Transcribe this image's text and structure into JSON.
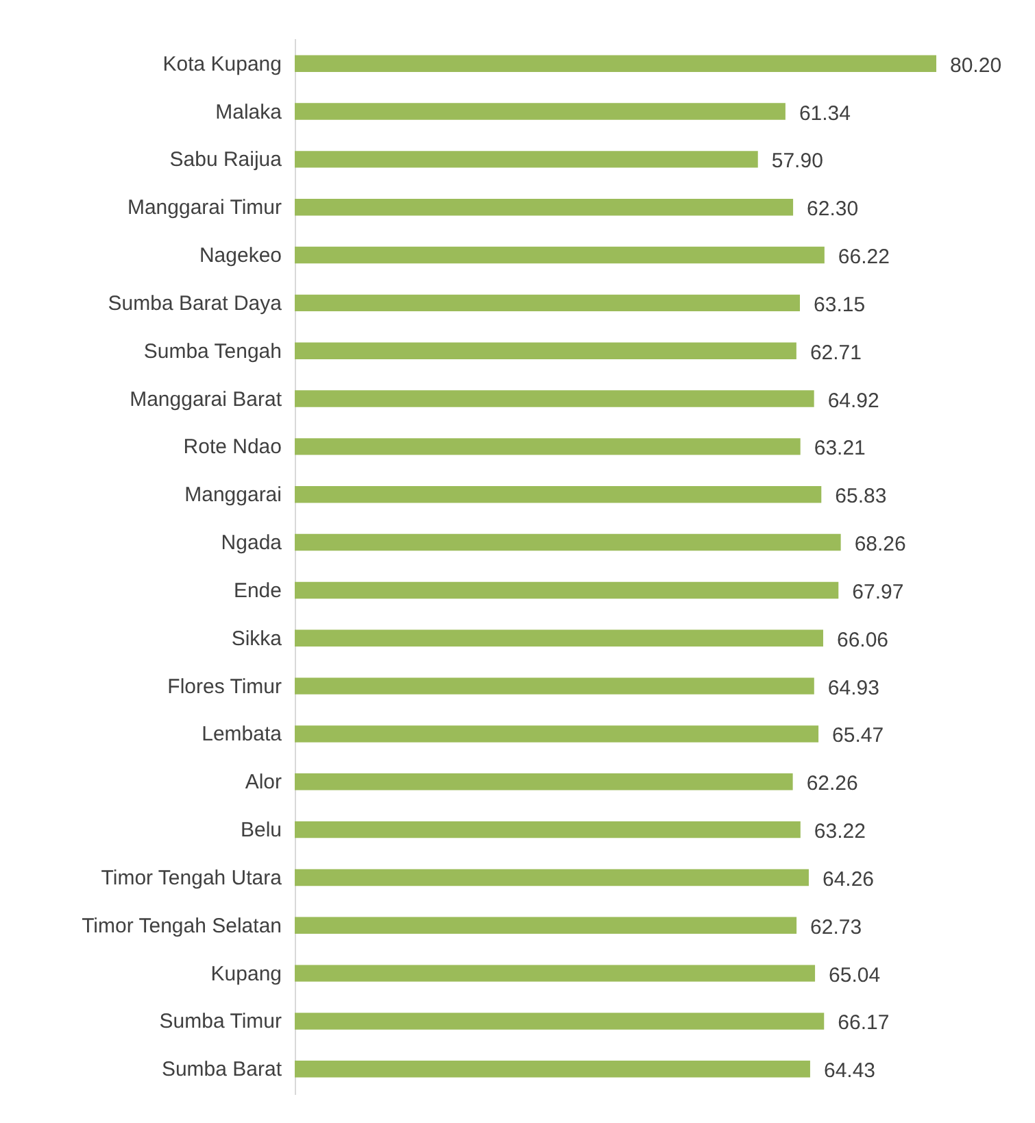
{
  "chart_data": {
    "type": "bar",
    "orientation": "horizontal",
    "categories": [
      "Kota Kupang",
      "Malaka",
      "Sabu Raijua",
      "Manggarai Timur",
      "Nagekeo",
      "Sumba Barat Daya",
      "Sumba Tengah",
      "Manggarai Barat",
      "Rote Ndao",
      "Manggarai",
      "Ngada",
      "Ende",
      "Sikka",
      "Flores Timur",
      "Lembata",
      "Alor",
      "Belu",
      "Timor Tengah Utara",
      "Timor Tengah Selatan",
      "Kupang",
      "Sumba Timur",
      "Sumba Barat"
    ],
    "series": [
      {
        "color": "#9bbb59",
        "values": [
          80.2,
          61.34,
          57.9,
          62.3,
          66.22,
          63.15,
          62.71,
          64.92,
          63.21,
          65.83,
          68.26,
          67.97,
          66.06,
          64.93,
          65.47,
          62.26,
          63.22,
          64.26,
          62.73,
          65.04,
          66.17,
          64.43
        ],
        "value_labels": [
          "80.20",
          "61.34",
          "57.90",
          "62.30",
          "66.22",
          "63.15",
          "62.71",
          "64.92",
          "63.21",
          "65.83",
          "68.26",
          "67.97",
          "66.06",
          "64.93",
          "65.47",
          "62.26",
          "63.22",
          "64.26",
          "62.73",
          "65.04",
          "66.17",
          "64.43"
        ]
      }
    ]
  }
}
